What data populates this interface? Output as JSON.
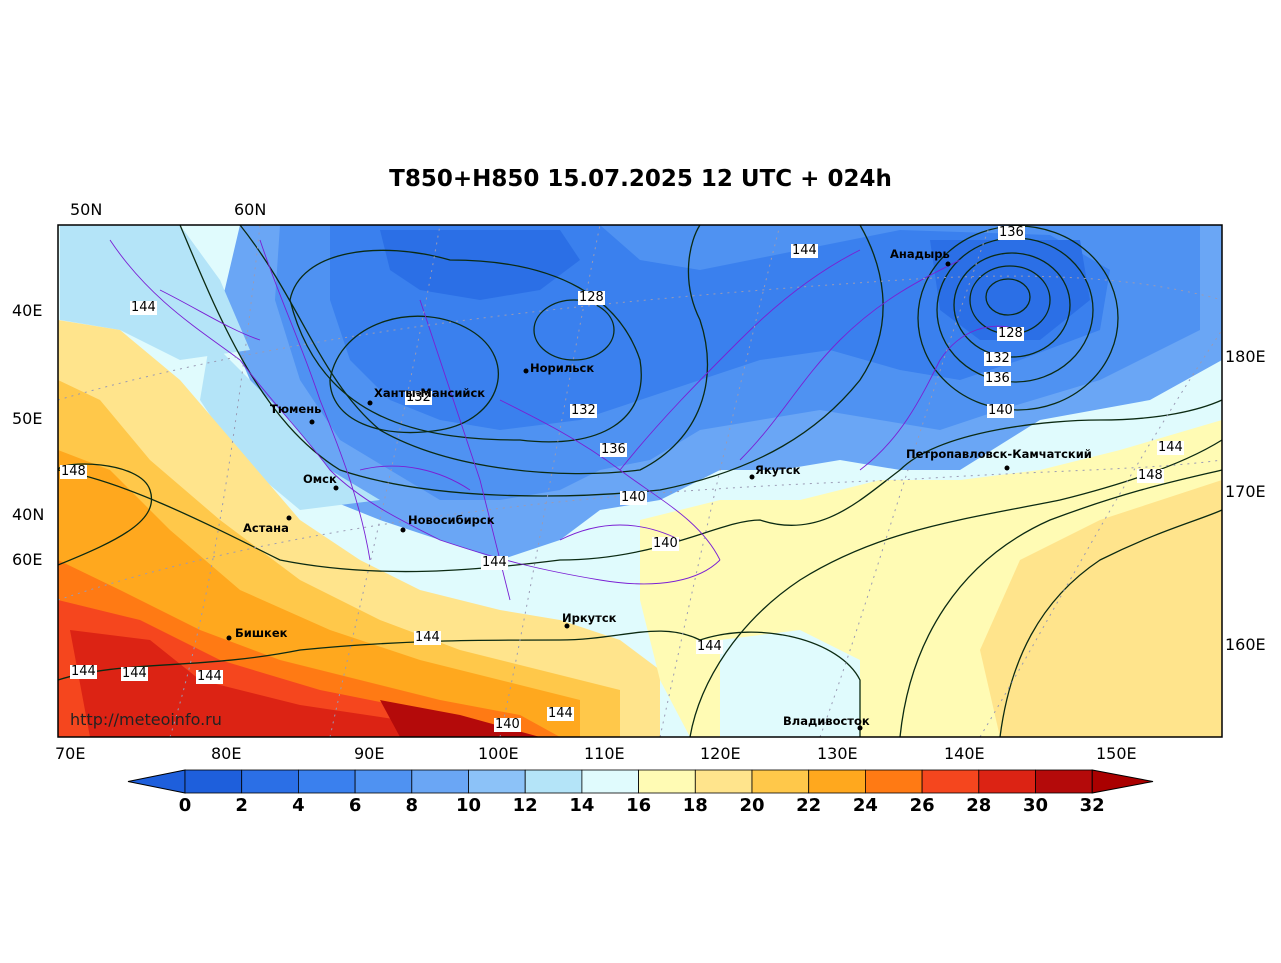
{
  "title": "T850+H850 15.07.2025 12 UTC + 024h",
  "watermark": "http://meteoinfo.ru",
  "lat_labels_top": [
    "50N",
    "60N"
  ],
  "left_labels": [
    "40E",
    "50E",
    "40N",
    "60E"
  ],
  "right_labels": [
    "180E",
    "170E",
    "160E"
  ],
  "bottom_labels": [
    "70E",
    "80E",
    "90E",
    "100E",
    "110E",
    "120E",
    "130E",
    "140E",
    "150E"
  ],
  "colorbar": {
    "ticks": [
      "0",
      "2",
      "4",
      "6",
      "8",
      "10",
      "12",
      "14",
      "16",
      "18",
      "20",
      "22",
      "24",
      "26",
      "28",
      "30",
      "32"
    ],
    "colors": [
      "#1e5fdc",
      "#2b6fe6",
      "#3a80ee",
      "#4f92f2",
      "#6aa6f5",
      "#8cc2f8",
      "#b4e4f8",
      "#e0fbfd",
      "#fffbb4",
      "#ffe48c",
      "#ffc84a",
      "#ffa81e",
      "#ff7a14",
      "#f5461e",
      "#dc2314",
      "#b40a0a"
    ],
    "under_color": "#1e5fdc",
    "over_color": "#aa0000"
  },
  "cities": [
    {
      "name": "Анадырь",
      "lon": 177.5,
      "lat": 64.7
    },
    {
      "name": "Норильск",
      "lon": 88.2,
      "lat": 69.3
    },
    {
      "name": "Ханты-Мансийск",
      "lon": 69.0,
      "lat": 61.0
    },
    {
      "name": "Тюмень",
      "lon": 65.5,
      "lat": 57.2
    },
    {
      "name": "Омск",
      "lon": 73.4,
      "lat": 55.0
    },
    {
      "name": "Астана",
      "lon": 71.4,
      "lat": 51.2
    },
    {
      "name": "Новосибирск",
      "lon": 82.9,
      "lat": 55.0
    },
    {
      "name": "Якутск",
      "lon": 129.7,
      "lat": 62.0
    },
    {
      "name": "Петропавловск-Камчатский",
      "lon": 158.6,
      "lat": 53.0
    },
    {
      "name": "Иркутск",
      "lon": 104.3,
      "lat": 52.3
    },
    {
      "name": "Бишкек",
      "lon": 74.6,
      "lat": 42.9
    },
    {
      "name": "Владивосток",
      "lon": 131.9,
      "lat": 43.1
    }
  ],
  "contour_labels": [
    "144",
    "128",
    "132",
    "132",
    "136",
    "140",
    "140",
    "144",
    "144",
    "144",
    "144",
    "144",
    "144",
    "148",
    "140",
    "144",
    "136",
    "144",
    "128",
    "132",
    "136",
    "140",
    "144",
    "148"
  ]
}
